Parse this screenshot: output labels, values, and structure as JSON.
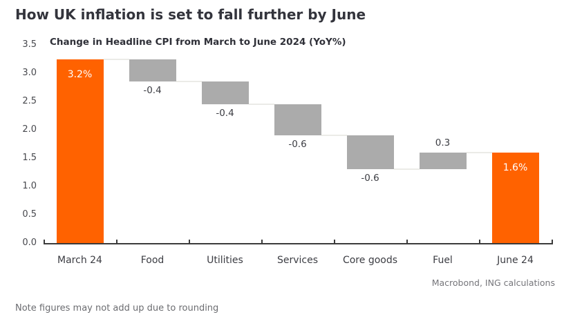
{
  "header": {
    "title": "How UK inflation is set to fall further by June"
  },
  "chart_data": {
    "type": "bar",
    "subtype": "waterfall",
    "title": "How UK inflation is set to fall further by June",
    "subtitle": "Change in Headline CPI from March to June 2024 (YoY%)",
    "categories": [
      "March 24",
      "Food",
      "Utilities",
      "Services",
      "Core goods",
      "Fuel",
      "June 24"
    ],
    "bars": [
      {
        "category": "March 24",
        "label": "3.2%",
        "start": 0,
        "end": 3.25,
        "color": "orange",
        "label_pos": "inside"
      },
      {
        "category": "Food",
        "label": "-0.4",
        "start": 3.25,
        "end": 2.85,
        "color": "gray",
        "label_pos": "below"
      },
      {
        "category": "Utilities",
        "label": "-0.4",
        "start": 2.85,
        "end": 2.45,
        "color": "gray",
        "label_pos": "below"
      },
      {
        "category": "Services",
        "label": "-0.6",
        "start": 2.45,
        "end": 1.9,
        "color": "gray",
        "label_pos": "below"
      },
      {
        "category": "Core goods",
        "label": "-0.6",
        "start": 1.9,
        "end": 1.3,
        "color": "gray",
        "label_pos": "below"
      },
      {
        "category": "Fuel",
        "label": "0.3",
        "start": 1.3,
        "end": 1.6,
        "color": "gray",
        "label_pos": "above"
      },
      {
        "category": "June 24",
        "label": "1.6%",
        "start": 0,
        "end": 1.6,
        "color": "orange",
        "label_pos": "inside"
      }
    ],
    "y_axis": {
      "min": 0,
      "max": 3.5,
      "step": 0.5,
      "ticks": [
        "0.0",
        "0.5",
        "1.0",
        "1.5",
        "2.0",
        "2.5",
        "3.0",
        "3.5"
      ]
    },
    "ylim": [
      0,
      3.5
    ],
    "grid": false,
    "legend_position": "none",
    "colors": {
      "highlight": "#FF6200",
      "change": "#ABABAB",
      "connector": "#EBEBE7",
      "axis": "#3A3A3A"
    }
  },
  "footer": {
    "source": "Macrobond, ING calculations",
    "note": "Note figures may not add up due to rounding"
  }
}
